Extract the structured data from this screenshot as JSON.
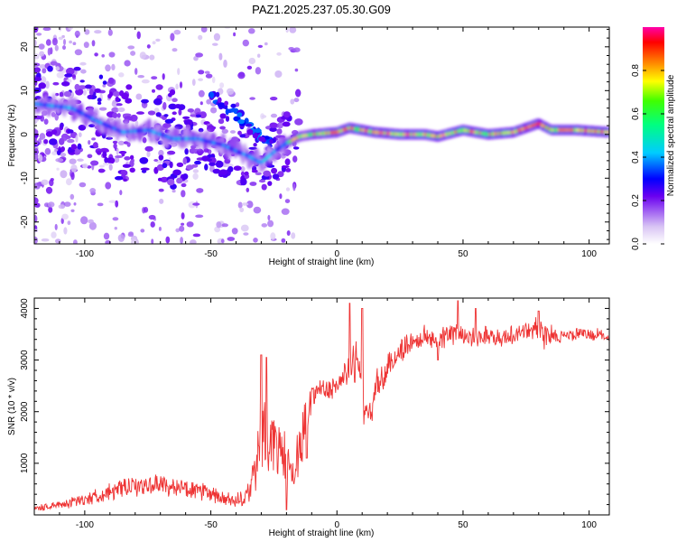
{
  "figure_title": "PAZ1.2025.237.05.30.G09",
  "chart_data": [
    {
      "type": "heatmap",
      "title": "PAZ1.2025.237.05.30.G09",
      "xlabel": "Height of straight line (km)",
      "ylabel": "Frequency (Hz)",
      "xlim": [
        -120,
        108
      ],
      "ylim": [
        -25,
        24.5
      ],
      "xticks": [
        -100,
        -50,
        0,
        50,
        100
      ],
      "xtick_labels": [
        "-100",
        "-50",
        "0",
        "50",
        "100"
      ],
      "yticks": [
        -20,
        -10,
        0,
        10,
        20
      ],
      "ytick_labels": [
        "-20",
        "-10",
        "0",
        "10",
        "20"
      ],
      "colorbar": {
        "label": "Normalized spectral amplitude",
        "range": [
          0,
          1
        ],
        "ticks": [
          0,
          0.2,
          0.4,
          0.6,
          0.8
        ],
        "tick_labels": [
          "0.0",
          "0.2",
          "0.4",
          "0.6",
          "0.8"
        ]
      },
      "ridge": [
        {
          "x": -120,
          "f": 7.0
        },
        {
          "x": -105,
          "f": 6.0
        },
        {
          "x": -95,
          "f": 3.0
        },
        {
          "x": -85,
          "f": 0.5
        },
        {
          "x": -75,
          "f": 1.0
        },
        {
          "x": -65,
          "f": -1.0
        },
        {
          "x": -55,
          "f": -1.0
        },
        {
          "x": -45,
          "f": -2.5
        },
        {
          "x": -35,
          "f": -5.0
        },
        {
          "x": -30,
          "f": -6.5
        },
        {
          "x": -25,
          "f": -4.0
        },
        {
          "x": -20,
          "f": -2.0
        },
        {
          "x": -15,
          "f": -0.5
        },
        {
          "x": -10,
          "f": 0.0
        },
        {
          "x": 0,
          "f": 0.5
        },
        {
          "x": 5,
          "f": 1.5
        },
        {
          "x": 15,
          "f": 0.5
        },
        {
          "x": 25,
          "f": 0.0
        },
        {
          "x": 35,
          "f": 0.0
        },
        {
          "x": 40,
          "f": -0.5
        },
        {
          "x": 50,
          "f": 1.0
        },
        {
          "x": 60,
          "f": 0.0
        },
        {
          "x": 70,
          "f": 0.5
        },
        {
          "x": 80,
          "f": 2.5
        },
        {
          "x": 85,
          "f": 1.0
        },
        {
          "x": 95,
          "f": 1.0
        },
        {
          "x": 108,
          "f": 0.5
        }
      ],
      "diagonal_branch": [
        {
          "x": -50,
          "f": 9.0
        },
        {
          "x": -45,
          "f": 7.0
        },
        {
          "x": -40,
          "f": 5.0
        },
        {
          "x": -35,
          "f": 2.0
        },
        {
          "x": -30,
          "f": -1.0
        },
        {
          "x": -25,
          "f": -3.0
        }
      ]
    },
    {
      "type": "line",
      "xlabel": "Height of straight line (km)",
      "ylabel": "SNR (10 * v/v)",
      "xlim": [
        -120,
        108
      ],
      "ylim": [
        0,
        4200
      ],
      "xticks": [
        -100,
        -50,
        0,
        50,
        100
      ],
      "xtick_labels": [
        "-100",
        "-50",
        "0",
        "50",
        "100"
      ],
      "yticks": [
        1000,
        2000,
        3000,
        4000
      ],
      "ytick_labels": [
        "1000",
        "2000",
        "3000",
        "4000"
      ],
      "series": [
        {
          "name": "SNR",
          "color": "#ee3333",
          "x": [
            -120,
            -110,
            -100,
            -90,
            -80,
            -70,
            -60,
            -50,
            -45,
            -40,
            -35,
            -32,
            -30,
            -28,
            -25,
            -22,
            -20,
            -18,
            -15,
            -12,
            -10,
            -8,
            -5,
            -3,
            0,
            2,
            5,
            7,
            8,
            10,
            12,
            15,
            20,
            25,
            30,
            35,
            40,
            45,
            50,
            55,
            60,
            65,
            70,
            75,
            80,
            82,
            85,
            90,
            95,
            100,
            108
          ],
          "values": [
            120,
            200,
            300,
            450,
            550,
            600,
            500,
            400,
            300,
            250,
            400,
            900,
            1700,
            1500,
            1400,
            1200,
            1000,
            700,
            1200,
            2000,
            2300,
            2400,
            2500,
            2400,
            2500,
            2650,
            2800,
            3100,
            3000,
            2400,
            1700,
            2400,
            2800,
            3200,
            3350,
            3450,
            3400,
            3500,
            3500,
            3450,
            3500,
            3400,
            3500,
            3550,
            3650,
            3400,
            3500,
            3450,
            3500,
            3500,
            3450
          ],
          "noise": [
            60,
            100,
            150,
            200,
            220,
            230,
            220,
            200,
            180,
            170,
            250,
            800,
            900,
            900,
            800,
            700,
            600,
            500,
            600,
            500,
            300,
            300,
            300,
            300,
            200,
            250,
            350,
            600,
            500,
            500,
            500,
            400,
            350,
            300,
            250,
            250,
            250,
            250,
            250,
            220,
            220,
            220,
            220,
            220,
            300,
            400,
            200,
            150,
            150,
            150,
            150
          ],
          "spikes": [
            [
              -30,
              3100
            ],
            [
              -28,
              3050
            ],
            [
              5,
              4100
            ],
            [
              10,
              4000
            ],
            [
              48,
              4150
            ],
            [
              55,
              4000
            ],
            [
              80,
              3950
            ],
            [
              40,
              3000
            ],
            [
              -12,
              1100
            ],
            [
              -20,
              100
            ]
          ]
        }
      ]
    }
  ]
}
